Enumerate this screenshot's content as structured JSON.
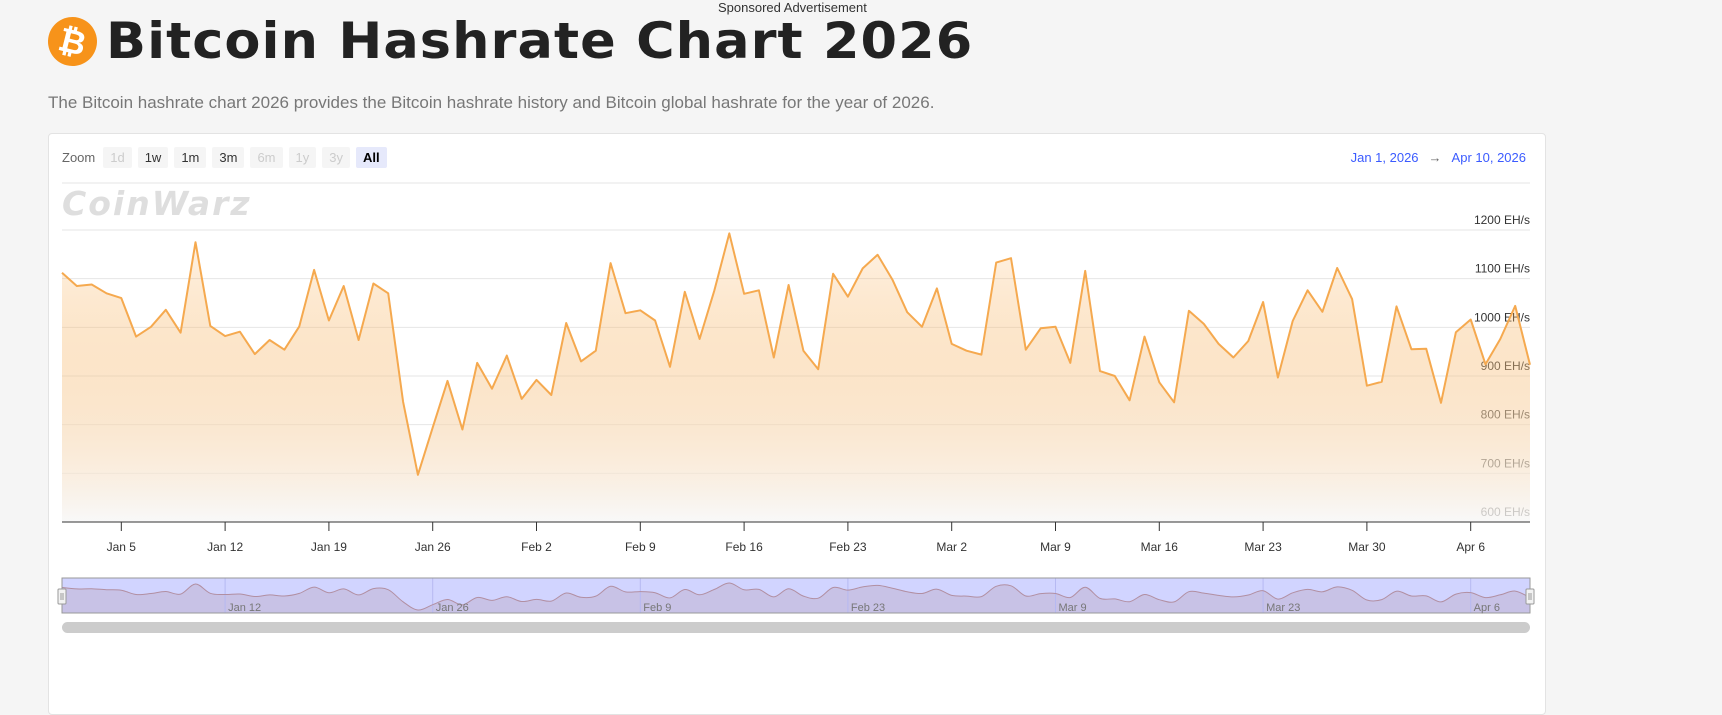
{
  "header": {
    "sponsored": "Sponsored Advertisement",
    "logo_icon": "bitcoin-icon",
    "logo_glyph": "₿",
    "title": "Bitcoin Hashrate Chart 2026",
    "subtitle": "The Bitcoin hashrate chart 2026 provides the Bitcoin hashrate history and Bitcoin global hashrate for the year of 2026."
  },
  "toolbar": {
    "zoom_label": "Zoom",
    "buttons": [
      {
        "label": "1d",
        "state": "disabled"
      },
      {
        "label": "1w",
        "state": "enabled"
      },
      {
        "label": "1m",
        "state": "enabled"
      },
      {
        "label": "3m",
        "state": "enabled"
      },
      {
        "label": "6m",
        "state": "disabled"
      },
      {
        "label": "1y",
        "state": "disabled"
      },
      {
        "label": "3y",
        "state": "disabled"
      },
      {
        "label": "All",
        "state": "active"
      }
    ],
    "range_from": "Jan 1, 2026",
    "range_arrow": "→",
    "range_to": "Apr 10, 2026"
  },
  "watermark": "CoinWarz",
  "colors": {
    "accent": "#f7931a",
    "line": "#f5a94f",
    "range_text": "#3b5bff",
    "navigator_mask": "#ccd0f6"
  },
  "chart_data": {
    "type": "area",
    "x_range": [
      "2026-01-01",
      "2026-04-10"
    ],
    "x_interval": "daily",
    "ylim": [
      600,
      1200
    ],
    "y_ticks": [
      "600 EH/s",
      "700 EH/s",
      "800 EH/s",
      "900 EH/s",
      "1000 EH/s",
      "1100 EH/s",
      "1200 EH/s"
    ],
    "y_tick_values": [
      600,
      700,
      800,
      900,
      1000,
      1100,
      1200
    ],
    "x_ticks": [
      {
        "label": "Jan 5",
        "date": "2026-01-05"
      },
      {
        "label": "Jan 12",
        "date": "2026-01-12"
      },
      {
        "label": "Jan 19",
        "date": "2026-01-19"
      },
      {
        "label": "Jan 26",
        "date": "2026-01-26"
      },
      {
        "label": "Feb 2",
        "date": "2026-02-02"
      },
      {
        "label": "Feb 9",
        "date": "2026-02-09"
      },
      {
        "label": "Feb 16",
        "date": "2026-02-16"
      },
      {
        "label": "Feb 23",
        "date": "2026-02-23"
      },
      {
        "label": "Mar 2",
        "date": "2026-03-02"
      },
      {
        "label": "Mar 9",
        "date": "2026-03-09"
      },
      {
        "label": "Mar 16",
        "date": "2026-03-16"
      },
      {
        "label": "Mar 23",
        "date": "2026-03-23"
      },
      {
        "label": "Mar 30",
        "date": "2026-03-30"
      },
      {
        "label": "Apr 6",
        "date": "2026-04-06"
      }
    ],
    "navigator_ticks": [
      {
        "label": "Jan 12",
        "date": "2026-01-12"
      },
      {
        "label": "Jan 26",
        "date": "2026-01-26"
      },
      {
        "label": "Feb 9",
        "date": "2026-02-09"
      },
      {
        "label": "Feb 23",
        "date": "2026-02-23"
      },
      {
        "label": "Mar 9",
        "date": "2026-03-09"
      },
      {
        "label": "Mar 23",
        "date": "2026-03-23"
      },
      {
        "label": "Apr 6",
        "date": "2026-04-06"
      }
    ],
    "grid": true,
    "legend": "none",
    "values": [
      1112,
      1085,
      1088,
      1070,
      1060,
      981,
      1001,
      1036,
      989,
      1175,
      1003,
      982,
      991,
      945,
      974,
      954,
      1002,
      1118,
      1014,
      1085,
      974,
      1090,
      1070,
      847,
      697,
      794,
      890,
      790,
      927,
      874,
      942,
      853,
      892,
      861,
      1009,
      930,
      952,
      1132,
      1029,
      1035,
      1014,
      919,
      1073,
      976,
      1076,
      1193,
      1069,
      1076,
      938,
      1087,
      952,
      914,
      1110,
      1063,
      1121,
      1149,
      1098,
      1031,
      1001,
      1080,
      966,
      952,
      944,
      1133,
      1142,
      954,
      998,
      1001,
      927,
      1116,
      910,
      900,
      850,
      981,
      887,
      846,
      1034,
      1007,
      966,
      938,
      972,
      1052,
      897,
      1013,
      1076,
      1032,
      1122,
      1058,
      880,
      888,
      1043,
      955,
      956,
      845,
      990,
      1016,
      924,
      976,
      1044,
      923
    ]
  }
}
